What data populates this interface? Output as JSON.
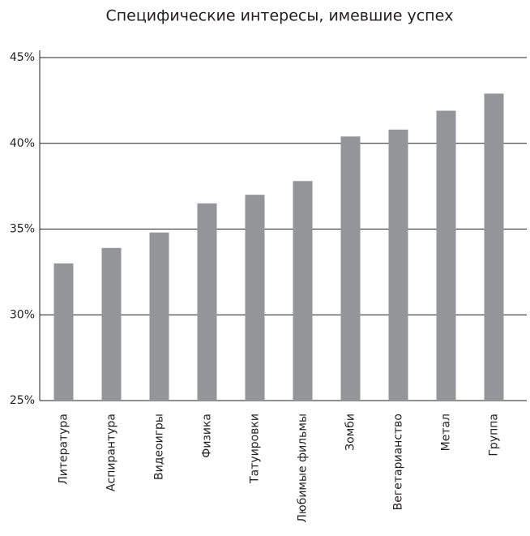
{
  "chart_data": {
    "type": "bar",
    "title": "Специфические интересы, имевшие успех",
    "categories": [
      "Литература",
      "Аспирантура",
      "Видеоигры",
      "Физика",
      "Татуировки",
      "Любимые фильмы",
      "Зомби",
      "Вегетарианство",
      "Метал",
      "Группа"
    ],
    "values": [
      33.0,
      33.9,
      34.8,
      36.5,
      37.0,
      37.8,
      40.4,
      40.8,
      41.9,
      42.9
    ],
    "color": "#939598",
    "ylim": [
      25,
      45
    ],
    "yticks": [
      {
        "value": 25,
        "label": "25%"
      },
      {
        "value": 30,
        "label": "30%"
      },
      {
        "value": 35,
        "label": "35%"
      },
      {
        "value": 40,
        "label": "40%"
      },
      {
        "value": 45,
        "label": "45%"
      }
    ],
    "grid": true
  }
}
